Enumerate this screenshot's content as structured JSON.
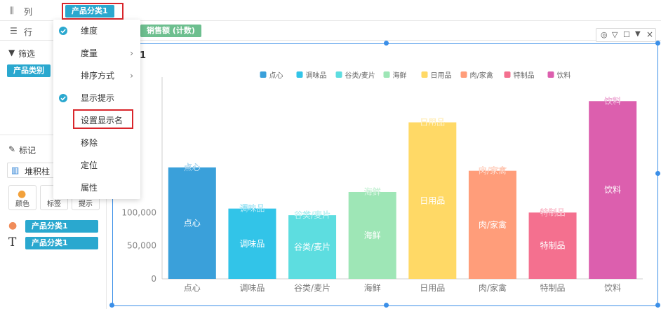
{
  "shelves": {
    "columns": {
      "label": "列",
      "pill": "产品分类1"
    },
    "rows": {
      "label": "行",
      "pill": "销售额 (计数)"
    }
  },
  "left_panel": {
    "filter_title": "筛选",
    "filter_pill": "产品类别",
    "marks_title": "标记",
    "mark_type": "堆积柱",
    "cards": [
      "颜色",
      "标签",
      "提示"
    ],
    "color_field": "产品分类1",
    "label_field": "产品分类1"
  },
  "menu": {
    "items": [
      {
        "label": "维度",
        "checked": true,
        "submenu": false
      },
      {
        "label": "度量",
        "checked": false,
        "submenu": true
      },
      {
        "label": "排序方式",
        "checked": false,
        "submenu": true
      },
      {
        "label": "显示提示",
        "checked": true,
        "submenu": false
      },
      {
        "label": "设置显示名",
        "checked": false,
        "submenu": false
      },
      {
        "label": "移除",
        "checked": false,
        "submenu": false
      },
      {
        "label": "定位",
        "checked": false,
        "submenu": false
      },
      {
        "label": "属性",
        "checked": false,
        "submenu": false
      }
    ]
  },
  "chart_title_fragment": "1",
  "toolbar_icons": [
    "locate-icon",
    "filter-icon",
    "square-icon",
    "dropdown-icon",
    "close-icon"
  ],
  "chart_data": {
    "type": "bar",
    "categories": [
      "点心",
      "调味品",
      "谷类/麦片",
      "海鲜",
      "日用品",
      "肉/家禽",
      "特制品",
      "饮料"
    ],
    "values": [
      168000,
      106000,
      96000,
      131000,
      236000,
      163000,
      100000,
      268000
    ],
    "colors": [
      "#3aa0da",
      "#32c4e8",
      "#5ddde0",
      "#9ee6b6",
      "#ffd966",
      "#ff9d7a",
      "#f4708f",
      "#dc5fae"
    ],
    "legend": [
      "点心",
      "调味品",
      "谷类/麦片",
      "海鲜",
      "日用品",
      "肉/家禽",
      "特制品",
      "饮料"
    ],
    "legend_position": "top",
    "yticks": [
      0,
      50000,
      100000,
      150000,
      200000,
      250000,
      300000
    ],
    "ytick_labels": [
      "0",
      "50,000",
      "100,000",
      "",
      "",
      "",
      ""
    ],
    "ylim": [
      0,
      300000
    ],
    "grid": false
  }
}
